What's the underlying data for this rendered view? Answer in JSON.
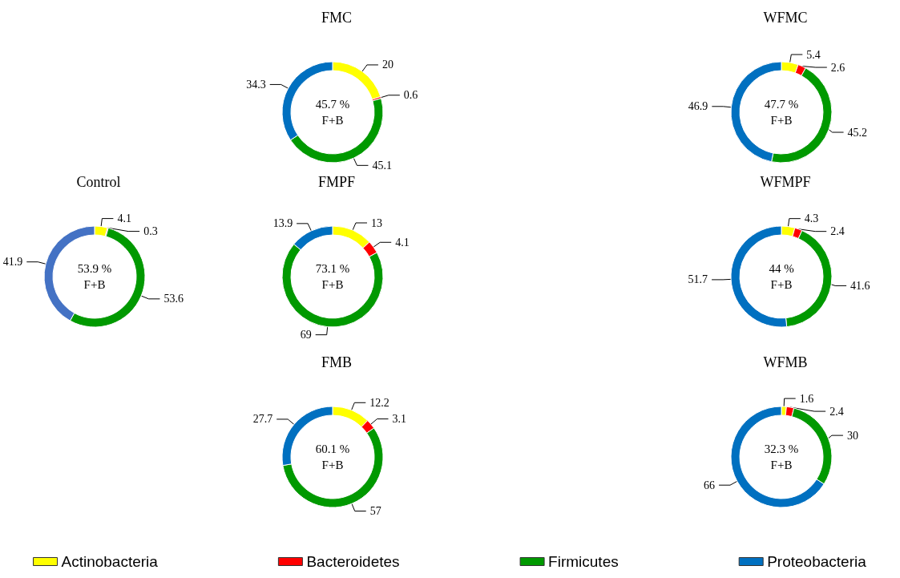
{
  "chart_data": [
    {
      "type": "donut",
      "title": "Control",
      "categories": [
        null,
        null,
        null,
        null
      ],
      "values": [
        4.1,
        0.3,
        53.6,
        41.9
      ],
      "colors": [
        "#ffff00",
        "#ff0000",
        "#009900",
        "#4472c4"
      ],
      "data_labels": true,
      "annotations": [
        "53.9 %",
        "F+B"
      ]
    },
    {
      "type": "donut",
      "title": "FMC",
      "categories": [
        "Actinobacteria",
        "Bacteroidetes",
        "Firmicutes",
        "Proteobacteria"
      ],
      "values": [
        20,
        0.6,
        45.1,
        34.3
      ],
      "colors": [
        "#ffff00",
        "#ff0000",
        "#009900",
        "#0070c0"
      ],
      "data_labels": true,
      "annotations": [
        "45.7 %",
        "F+B"
      ],
      "legend": "bottom"
    },
    {
      "type": "donut",
      "title": "FMPF",
      "categories": [
        null,
        null,
        null,
        null
      ],
      "values": [
        13,
        4.1,
        69,
        13.9
      ],
      "colors": [
        "#ffff00",
        "#ff0000",
        "#009900",
        "#0070c0"
      ],
      "data_labels": true,
      "annotations": [
        "73.1 %",
        "F+B"
      ]
    },
    {
      "type": "donut",
      "title": "FMB",
      "categories": [
        null,
        null,
        null,
        null
      ],
      "values": [
        12.2,
        3.1,
        57,
        27.7
      ],
      "colors": [
        "#ffff00",
        "#ff0000",
        "#009900",
        "#0070c0"
      ],
      "data_labels": true,
      "annotations": [
        "60.1 %",
        "F+B"
      ]
    },
    {
      "type": "donut",
      "title": "WFMC",
      "categories": [
        null,
        null,
        null,
        null
      ],
      "values": [
        5.4,
        2.6,
        45.2,
        46.9
      ],
      "colors": [
        "#ffff00",
        "#ff0000",
        "#009900",
        "#0070c0"
      ],
      "data_labels": true,
      "annotations": [
        "47.7 %",
        "F+B"
      ]
    },
    {
      "type": "donut",
      "title": "WFMPF",
      "categories": [
        null,
        null,
        null,
        null
      ],
      "values": [
        4.3,
        2.4,
        41.6,
        51.7
      ],
      "colors": [
        "#ffff00",
        "#ff0000",
        "#009900",
        "#0070c0"
      ],
      "data_labels": true,
      "annotations": [
        "44 %",
        "F+B"
      ]
    },
    {
      "type": "donut",
      "title": "WFMB",
      "categories": [
        null,
        null,
        null,
        null
      ],
      "values": [
        1.6,
        2.4,
        30,
        66
      ],
      "colors": [
        "#ffff00",
        "#ff0000",
        "#009900",
        "#0070c0"
      ],
      "data_labels": true,
      "annotations": [
        "32.3 %",
        "F+B"
      ]
    }
  ]
}
